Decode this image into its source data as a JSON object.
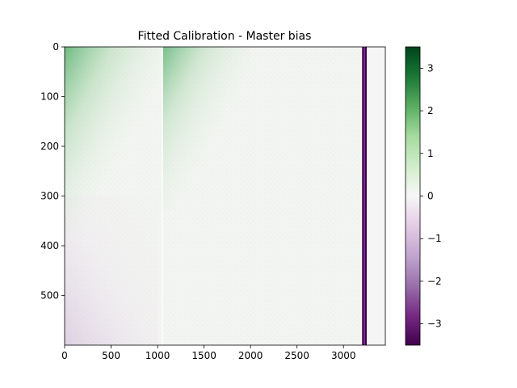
{
  "chart_data": {
    "type": "heatmap",
    "title": "Fitted Calibration - Master bias",
    "xlabel": "",
    "ylabel": "",
    "xlim": [
      0,
      3450
    ],
    "ylim": [
      600,
      0
    ],
    "x_ticks": [
      {
        "value": 0,
        "label": "0"
      },
      {
        "value": 500,
        "label": "500"
      },
      {
        "value": 1000,
        "label": "1000"
      },
      {
        "value": 1500,
        "label": "1500"
      },
      {
        "value": 2000,
        "label": "2000"
      },
      {
        "value": 2500,
        "label": "2500"
      },
      {
        "value": 3000,
        "label": "3000"
      }
    ],
    "y_ticks": [
      {
        "value": 0,
        "label": "0"
      },
      {
        "value": 100,
        "label": "100"
      },
      {
        "value": 200,
        "label": "200"
      },
      {
        "value": 300,
        "label": "300"
      },
      {
        "value": 400,
        "label": "400"
      },
      {
        "value": 500,
        "label": "500"
      }
    ],
    "colorbar": {
      "cmap": "PRGn",
      "range": [
        -3.5,
        3.5
      ],
      "ticks": [
        {
          "value": 3,
          "label": "3"
        },
        {
          "value": 2,
          "label": "2"
        },
        {
          "value": 1,
          "label": "1"
        },
        {
          "value": 0,
          "label": "0"
        },
        {
          "value": -1,
          "label": "−1"
        },
        {
          "value": -2,
          "label": "−2"
        },
        {
          "value": -3,
          "label": "−3"
        }
      ]
    },
    "features": [
      {
        "name": "green gradient",
        "x_range": [
          0,
          1050
        ],
        "y_range": [
          0,
          170
        ],
        "value": 1.2
      },
      {
        "name": "green gradient",
        "x_range": [
          1050,
          2000
        ],
        "y_range": [
          0,
          150
        ],
        "value": 1.0
      },
      {
        "name": "purple tint",
        "x_range": [
          0,
          1000
        ],
        "y_range": [
          400,
          600
        ],
        "value": -0.5
      },
      {
        "name": "seam",
        "x": 1050,
        "value": 0
      },
      {
        "name": "dark purple band",
        "x_range": [
          3200,
          3250
        ],
        "y_range": [
          0,
          600
        ],
        "value": -3.3
      }
    ]
  }
}
